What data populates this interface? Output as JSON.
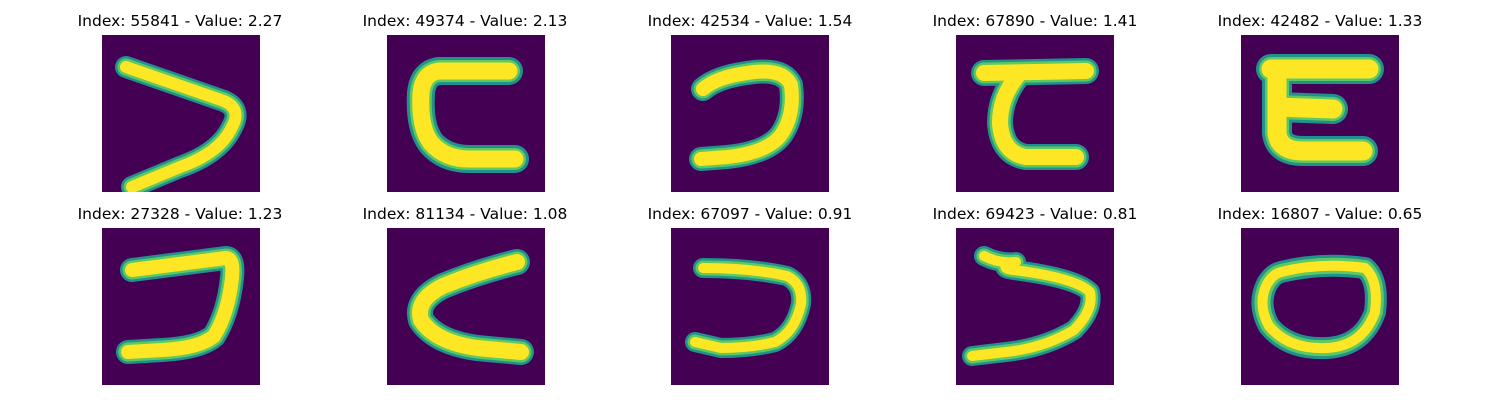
{
  "colors": {
    "background": "#440154",
    "stroke_edge": "#21918c",
    "stroke_mid": "#5ec962",
    "stroke_core": "#fde725"
  },
  "panels": [
    {
      "index": "55841",
      "value": "2.27",
      "title": "Index: 55841 - Value: 2.27",
      "shape": "handwritten glyph resembling '>' / angled stroke"
    },
    {
      "index": "49374",
      "value": "2.13",
      "title": "Index: 49374 - Value: 2.13",
      "shape": "handwritten glyph resembling 'C' (square-cornered)"
    },
    {
      "index": "42534",
      "value": "1.54",
      "title": "Index: 42534 - Value: 1.54",
      "shape": "handwritten glyph resembling 'ɔ' / reversed C"
    },
    {
      "index": "67890",
      "value": "1.41",
      "title": "Index: 67890 - Value: 1.41",
      "shape": "handwritten glyph resembling 'ɛ' / 'Z' with bar"
    },
    {
      "index": "42482",
      "value": "1.33",
      "title": "Index: 42482 - Value: 1.33",
      "shape": "handwritten glyph resembling 'E' / 'ɛ' bold"
    },
    {
      "index": "27328",
      "value": "1.23",
      "title": "Index: 27328 - Value: 1.23",
      "shape": "handwritten glyph resembling 'ɔ' / reversed C"
    },
    {
      "index": "81134",
      "value": "1.08",
      "title": "Index: 81134 - Value: 1.08",
      "shape": "handwritten glyph resembling '<'"
    },
    {
      "index": "67097",
      "value": "0.91",
      "title": "Index: 67097 - Value: 0.91",
      "shape": "handwritten glyph resembling 'ɔ' / reversed C"
    },
    {
      "index": "69423",
      "value": "0.81",
      "title": "Index: 69423 - Value: 0.81",
      "shape": "handwritten glyph resembling 'ɔ' / wavy reversed C"
    },
    {
      "index": "16807",
      "value": "0.65",
      "title": "Index: 16807 - Value: 0.65",
      "shape": "handwritten glyph resembling 'O' / closed loop"
    }
  ]
}
